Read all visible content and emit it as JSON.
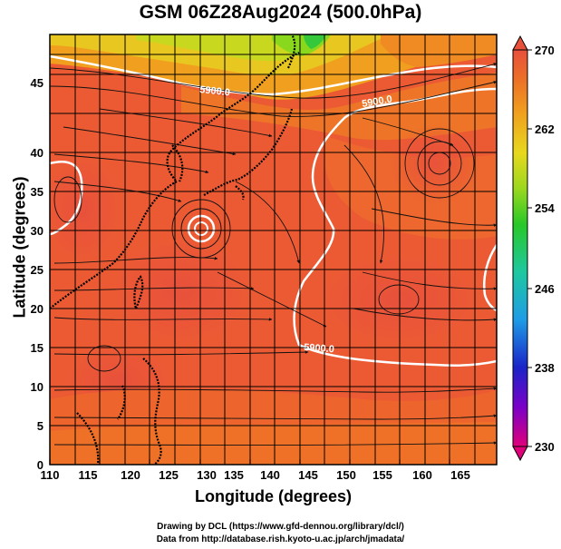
{
  "title": "GSM 06Z28Aug2024 (500.0hPa)",
  "x_axis": {
    "label": "Longitude (degrees)",
    "ticks": [
      "110",
      "115",
      "120",
      "125",
      "130",
      "135",
      "140",
      "145",
      "150",
      "155",
      "160",
      "165"
    ]
  },
  "y_axis": {
    "label": "Latitude  (degrees)",
    "ticks": [
      "0",
      "5",
      "10",
      "15",
      "20",
      "25",
      "30",
      "35",
      "40",
      "45"
    ]
  },
  "colorbar": {
    "ticks": [
      "270",
      "262",
      "254",
      "246",
      "238",
      "230"
    ],
    "colors": [
      "#e0007a",
      "#7a00c8",
      "#1a24c8",
      "#1e9ce6",
      "#1ec8a0",
      "#28c828",
      "#9ad81e",
      "#e8d81e",
      "#f0a01e",
      "#ec6e28",
      "#e8503c"
    ]
  },
  "contour_labels": [
    "5900.0",
    "5900.0",
    "5900.0"
  ],
  "credits": [
    "Drawing by DCL (https://www.gfd-dennou.org/library/dcl/)",
    "Data from http://database.rish.kyoto-u.ac.jp/arch/jmadata/"
  ]
}
